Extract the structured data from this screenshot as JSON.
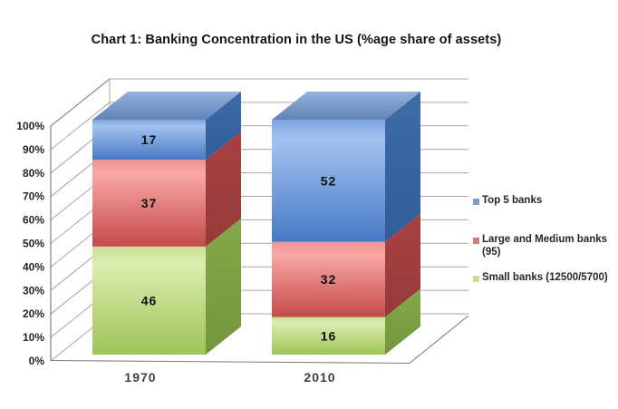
{
  "title": "Chart 1: Banking Concentration in the US (%age share of assets)",
  "chart_data": {
    "type": "bar",
    "subtype": "3d-stacked-column",
    "title": "Chart 1: Banking Concentration in the US (%age share of assets)",
    "categories": [
      "1970",
      "2010"
    ],
    "series": [
      {
        "key": "small-banks",
        "name": "Small banks (12500/5700)",
        "values": [
          46,
          16
        ],
        "color": "#9bbb59",
        "front_gradient": [
          "#ccdf96",
          "#dcecb0",
          "#9ec455"
        ],
        "side_gradient": [
          "#85a847",
          "#73953e"
        ],
        "label_color": "#111111"
      },
      {
        "key": "large-medium-banks",
        "name": "Large and Medium banks (95)",
        "values": [
          37,
          32
        ],
        "color": "#c0504d",
        "front_gradient": [
          "#eb9494",
          "#f9a8a6",
          "#c44a4a"
        ],
        "side_gradient": [
          "#a84141",
          "#963a3a"
        ],
        "label_color": "#111111"
      },
      {
        "key": "top-5-banks",
        "name": "Top 5 banks",
        "values": [
          17,
          52
        ],
        "color": "#4f81bd",
        "front_gradient": [
          "#7fa6e0",
          "#a4c2f1",
          "#4579c4"
        ],
        "side_gradient": [
          "#3e6ca8",
          "#315d98"
        ],
        "top_gradient": [
          "#94b2dd",
          "#6083b8"
        ],
        "label_color": "#111111"
      }
    ],
    "ylim": [
      0,
      100
    ],
    "grid": true,
    "legend_position": "right",
    "xlabel": "",
    "ylabel": ""
  },
  "y_axis": {
    "ticks": [
      "0%",
      "10%",
      "20%",
      "30%",
      "40%",
      "50%",
      "60%",
      "70%",
      "80%",
      "90%",
      "100%"
    ]
  },
  "legend": {
    "items": [
      {
        "key": "top-5-banks",
        "label": "Top 5 banks",
        "label_lines": [
          "Top 5 banks"
        ],
        "color": "#7da0cb"
      },
      {
        "key": "large-medium-banks",
        "label": "Large and Medium banks (95)",
        "label_lines": [
          "Large and Medium banks",
          "(95)"
        ],
        "color": "#cc7d7d"
      },
      {
        "key": "small-banks",
        "label": "Small banks (12500/5700)",
        "label_lines": [
          "Small banks (12500/5700)"
        ],
        "color": "#cbdf94"
      }
    ]
  },
  "colors": {
    "gridline": "#a6a6a6",
    "wall_edge": "#808080",
    "tick_label": "#262626",
    "category_label": "#404040",
    "background": "#ffffff"
  }
}
